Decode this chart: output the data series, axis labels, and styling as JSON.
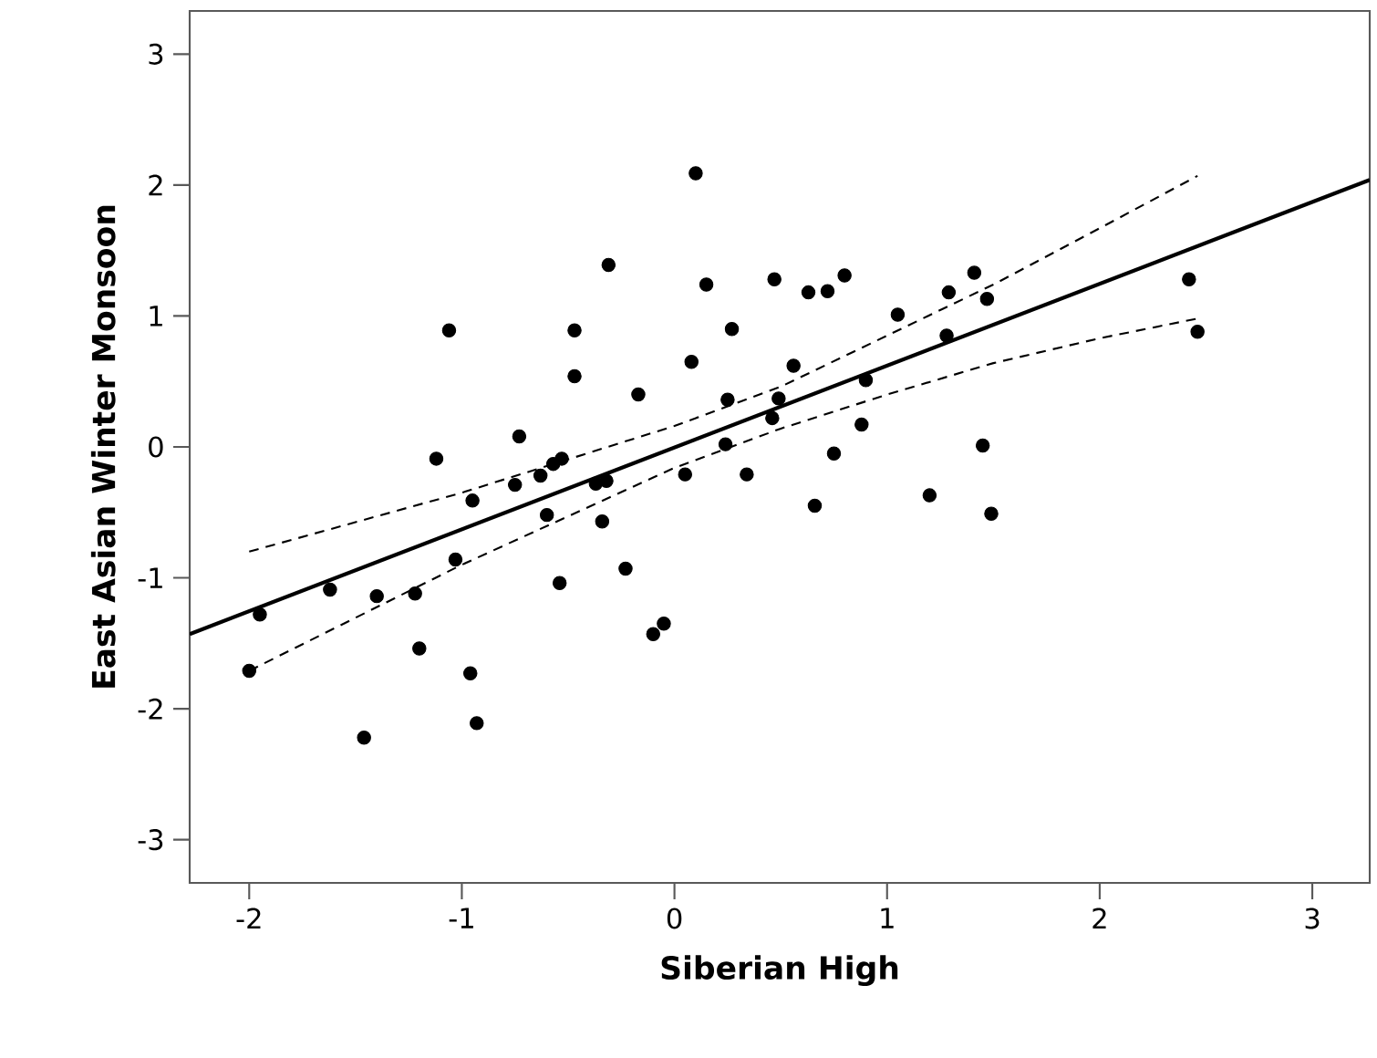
{
  "chart_data": {
    "type": "scatter",
    "xlabel": "Siberian High",
    "ylabel": "East Asian Winter Monsoon",
    "xlim": [
      -2.28,
      3.27
    ],
    "ylim": [
      -3.33,
      3.33
    ],
    "xticks": [
      -2,
      -1,
      0,
      1,
      2,
      3
    ],
    "yticks": [
      -3,
      -2,
      -1,
      0,
      1,
      2,
      3
    ],
    "grid": false,
    "series": [
      {
        "color": "#000000",
        "marker": "circle",
        "x": [
          -2.0,
          -1.95,
          -1.62,
          -1.4,
          -1.46,
          -1.22,
          -1.2,
          -1.12,
          -1.06,
          -1.03,
          -0.95,
          -0.96,
          -0.93,
          -0.75,
          -0.73,
          -0.63,
          -0.6,
          -0.57,
          -0.53,
          -0.54,
          -0.47,
          -0.47,
          -0.37,
          -0.32,
          -0.34,
          -0.31,
          -0.23,
          -0.17,
          -0.1,
          -0.05,
          0.05,
          0.08,
          0.1,
          0.15,
          0.24,
          0.25,
          0.27,
          0.34,
          0.46,
          0.47,
          0.49,
          0.56,
          0.63,
          0.66,
          0.72,
          0.75,
          0.8,
          0.88,
          0.9,
          1.05,
          1.2,
          1.28,
          1.29,
          1.41,
          1.45,
          1.47,
          1.49,
          2.42,
          2.46
        ],
        "values": [
          -1.71,
          -1.28,
          -1.09,
          -1.14,
          -2.22,
          -1.12,
          -1.54,
          -0.09,
          0.89,
          -0.86,
          -0.41,
          -1.73,
          -2.11,
          -0.29,
          0.08,
          -0.22,
          -0.52,
          -0.13,
          -0.09,
          -1.04,
          0.54,
          0.89,
          -0.28,
          -0.26,
          -0.57,
          1.39,
          -0.93,
          0.4,
          -1.43,
          -1.35,
          -0.21,
          0.65,
          2.09,
          1.24,
          0.02,
          0.36,
          0.9,
          -0.21,
          0.22,
          1.28,
          0.37,
          0.62,
          1.18,
          -0.45,
          1.19,
          -0.05,
          1.31,
          0.17,
          0.51,
          1.01,
          -0.37,
          0.85,
          1.18,
          1.33,
          0.01,
          1.13,
          -0.51,
          1.28,
          0.88
        ]
      },
      {
        "type": "line",
        "color": "#000000",
        "marker": "none",
        "line_style": "solid",
        "x": [
          -2.28,
          3.27
        ],
        "values": [
          -1.43,
          2.04
        ]
      },
      {
        "type": "line",
        "color": "#000000",
        "marker": "none",
        "line_style": "dashed",
        "x": [
          -2.0,
          -1.0,
          0.0,
          0.5,
          1.0,
          1.5,
          2.0,
          2.46
        ],
        "values": [
          -0.8,
          -0.35,
          0.16,
          0.46,
          0.85,
          1.24,
          1.67,
          2.07
        ]
      },
      {
        "type": "line",
        "color": "#000000",
        "marker": "none",
        "line_style": "dashed",
        "x": [
          -2.0,
          -1.0,
          0.0,
          0.5,
          1.0,
          1.5,
          2.0,
          2.46
        ],
        "values": [
          -1.71,
          -0.9,
          -0.16,
          0.14,
          0.4,
          0.64,
          0.83,
          0.98
        ]
      }
    ]
  }
}
